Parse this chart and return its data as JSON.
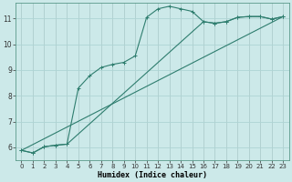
{
  "xlabel": "Humidex (Indice chaleur)",
  "background_color": "#cce9e9",
  "grid_color": "#aed4d4",
  "line_color": "#2e7d6e",
  "xlim": [
    -0.5,
    23.5
  ],
  "ylim": [
    5.5,
    11.6
  ],
  "xticks": [
    0,
    1,
    2,
    3,
    4,
    5,
    6,
    7,
    8,
    9,
    10,
    11,
    12,
    13,
    14,
    15,
    16,
    17,
    18,
    19,
    20,
    21,
    22,
    23
  ],
  "yticks": [
    6,
    7,
    8,
    9,
    10,
    11
  ],
  "curve1_x": [
    0,
    1,
    2,
    3,
    4,
    5,
    6,
    7,
    8,
    9,
    10,
    11,
    12,
    13,
    14,
    15,
    16,
    17,
    18,
    19,
    20,
    21,
    22,
    23
  ],
  "curve1_y": [
    5.88,
    5.78,
    6.02,
    6.08,
    6.12,
    8.3,
    8.78,
    9.1,
    9.22,
    9.3,
    9.55,
    11.05,
    11.38,
    11.48,
    11.38,
    11.28,
    10.88,
    10.82,
    10.88,
    11.05,
    11.08,
    11.08,
    10.98,
    11.08
  ],
  "curve2_x": [
    0,
    1,
    2,
    3,
    4,
    16,
    17,
    18,
    19,
    20,
    21,
    22,
    23
  ],
  "curve2_y": [
    5.88,
    5.78,
    6.02,
    6.08,
    6.12,
    10.88,
    10.82,
    10.88,
    11.05,
    11.08,
    11.08,
    10.98,
    11.08
  ],
  "curve3_x": [
    0,
    23
  ],
  "curve3_y": [
    5.88,
    11.08
  ]
}
